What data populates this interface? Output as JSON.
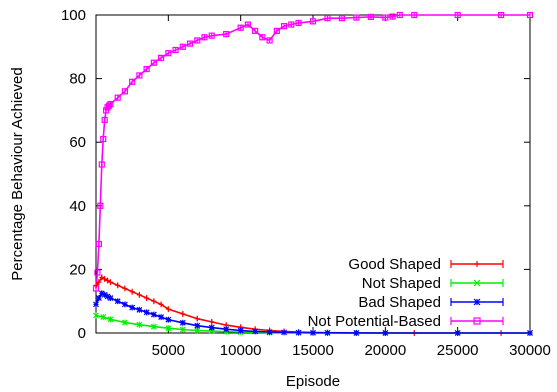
{
  "chart_data": {
    "type": "line",
    "xlabel": "Episode",
    "ylabel": "Percentage Behaviour Achieved",
    "xlim": [
      0,
      30000
    ],
    "ylim": [
      0,
      100
    ],
    "xticks": [
      5000,
      10000,
      15000,
      20000,
      25000,
      30000
    ],
    "yticks": [
      0,
      20,
      40,
      60,
      80,
      100
    ],
    "legend_position": "bottom-right",
    "series": [
      {
        "name": "Good Shaped",
        "color": "#ff0000",
        "marker": "plus",
        "x": [
          0,
          200,
          400,
          600,
          800,
          1000,
          1500,
          2000,
          2500,
          3000,
          3500,
          4000,
          4500,
          5000,
          6000,
          7000,
          8000,
          9000,
          10000,
          11000,
          12000,
          13000,
          14000,
          15000,
          16000,
          18000,
          20000,
          22000,
          25000,
          28000,
          30000
        ],
        "y": [
          15,
          16,
          17.5,
          17,
          16.5,
          16,
          15,
          14,
          13,
          12,
          11,
          10,
          9,
          7.5,
          6,
          4.5,
          3.5,
          2.5,
          1.8,
          1.2,
          0.8,
          0.5,
          0.3,
          0.2,
          0.1,
          0.05,
          0.03,
          0.02,
          0.01,
          0.01,
          0.01
        ]
      },
      {
        "name": "Not Shaped",
        "color": "#00ee00",
        "marker": "cross",
        "x": [
          0,
          500,
          1000,
          2000,
          3000,
          4000,
          5000,
          6000,
          7000,
          8000,
          9000,
          10000,
          12000,
          14000,
          16000,
          18000,
          20000,
          25000,
          30000
        ],
        "y": [
          5.5,
          5,
          4.3,
          3.3,
          2.6,
          2,
          1.5,
          1.1,
          0.8,
          0.6,
          0.4,
          0.3,
          0.15,
          0.08,
          0.04,
          0.02,
          0.01,
          0.01,
          0.01
        ]
      },
      {
        "name": "Bad Shaped",
        "color": "#0000ff",
        "marker": "star",
        "x": [
          0,
          200,
          400,
          600,
          800,
          1000,
          1500,
          2000,
          2500,
          3000,
          3500,
          4000,
          4500,
          5000,
          6000,
          7000,
          8000,
          9000,
          10000,
          11000,
          12000,
          13000,
          14000,
          15000,
          16000,
          18000,
          20000,
          25000,
          30000
        ],
        "y": [
          9,
          11,
          12.5,
          12,
          11.5,
          11,
          10,
          9,
          8,
          7.3,
          6.5,
          5.8,
          5,
          4.2,
          3.2,
          2.3,
          1.7,
          1.2,
          0.8,
          0.5,
          0.3,
          0.2,
          0.12,
          0.07,
          0.05,
          0.02,
          0.01,
          0.01,
          0.01
        ]
      },
      {
        "name": "Not Potential-Based",
        "color": "#ff00ff",
        "marker": "square",
        "x": [
          0,
          100,
          200,
          300,
          400,
          500,
          600,
          700,
          800,
          900,
          1000,
          1500,
          2000,
          2500,
          3000,
          3500,
          4000,
          4500,
          5000,
          5500,
          6000,
          6500,
          7000,
          7500,
          8000,
          9000,
          10000,
          10500,
          11000,
          11500,
          12000,
          12500,
          13000,
          13500,
          14000,
          15000,
          16000,
          17000,
          18000,
          19000,
          20000,
          20500,
          21000,
          22000,
          25000,
          28000,
          30000
        ],
        "y": [
          14,
          19,
          28,
          40,
          53,
          61,
          67,
          70,
          71,
          71.5,
          72,
          74,
          76,
          79,
          81,
          83,
          85,
          86.5,
          88,
          89,
          90,
          91,
          92,
          93,
          93.5,
          94,
          96,
          97,
          95,
          93,
          92,
          95,
          96.5,
          97,
          97.5,
          98,
          99,
          99,
          99.2,
          99.4,
          99.2,
          99.5,
          100,
          100,
          100,
          100,
          100
        ]
      }
    ]
  }
}
